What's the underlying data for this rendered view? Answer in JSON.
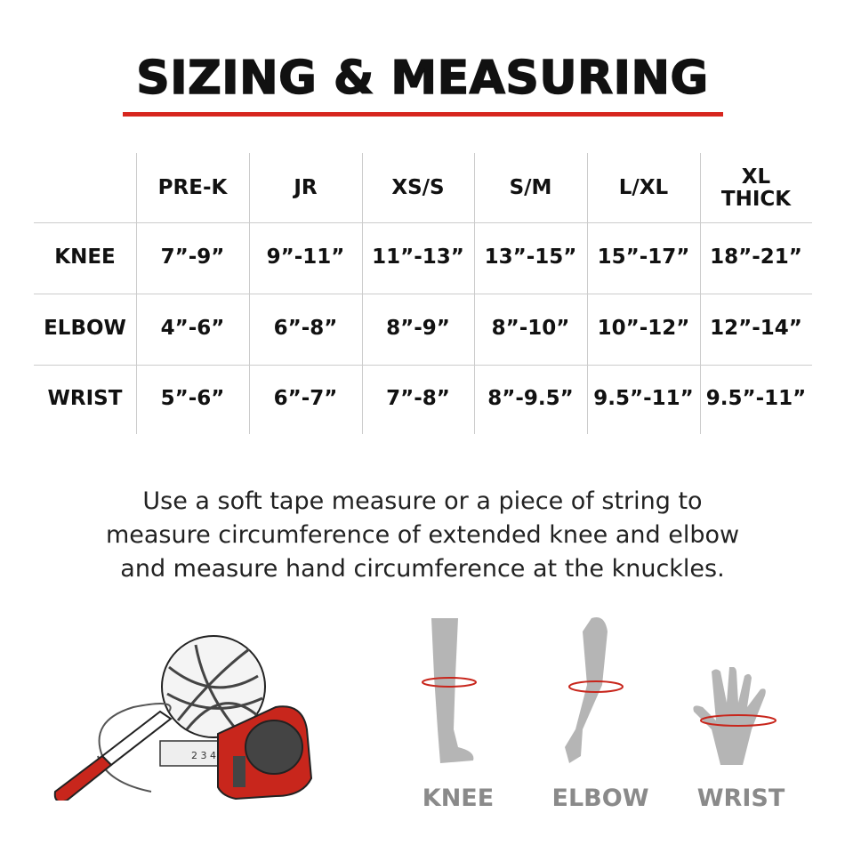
{
  "title": "SIZING & MEASURING",
  "colors": {
    "accent": "#d7261e",
    "text": "#111111",
    "figure_gray": "#b5b5b5",
    "label_gray": "#8a8a8a"
  },
  "table": {
    "columns": [
      "PRE-K",
      "JR",
      "XS/S",
      "S/M",
      "L/XL",
      "XL THICK"
    ],
    "rows": [
      {
        "label": "KNEE",
        "values": [
          "7”-9”",
          "9”-11”",
          "11”-13”",
          "13”-15”",
          "15”-17”",
          "18”-21”"
        ]
      },
      {
        "label": "ELBOW",
        "values": [
          "4”-6”",
          "6”-8”",
          "8”-9”",
          "8”-10”",
          "10”-12”",
          "12”-14”"
        ]
      },
      {
        "label": "WRIST",
        "values": [
          "5”-6”",
          "6”-7”",
          "7”-8”",
          "8”-9.5”",
          "9.5”-11”",
          "9.5”-11”"
        ]
      }
    ]
  },
  "instructions": [
    "Use a soft tape measure or a piece of string to",
    "measure circumference of extended knee and elbow",
    "and measure hand circumference at the knuckles."
  ],
  "figures": [
    {
      "label": "KNEE",
      "icon": "leg-icon"
    },
    {
      "label": "ELBOW",
      "icon": "arm-icon"
    },
    {
      "label": "WRIST",
      "icon": "hand-icon"
    }
  ],
  "tools_illustration": [
    "marker-icon",
    "string-ball-icon",
    "tape-measure-icon"
  ]
}
